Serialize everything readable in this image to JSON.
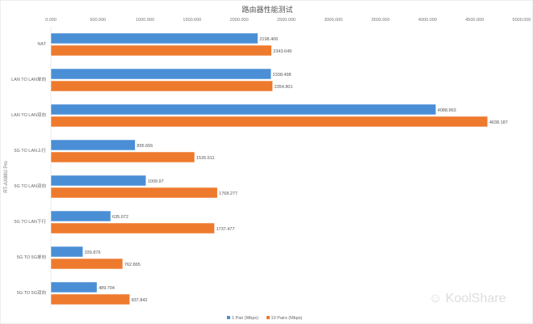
{
  "chart_data": {
    "type": "bar",
    "orientation": "horizontal",
    "title": "路由器性能测试",
    "ylabel": "RT-AX88U Pro",
    "xlabel": "",
    "xlim": [
      0,
      5000
    ],
    "xticks": [
      "0.000",
      "500.000",
      "1000.000",
      "1500.000",
      "2000.000",
      "2500.000",
      "3000.000",
      "3500.000",
      "4000.000",
      "4500.000",
      "5000.000"
    ],
    "categories": [
      "NAT",
      "LAN TO LAN单向",
      "LAN TO LAN双向",
      "5G TO LAN上行",
      "5G TO LAN双向",
      "5G TO LAN下行",
      "5G TO 5G单向",
      "5G TO 5G双向"
    ],
    "series": [
      {
        "name": "1 Pair (Mbps)",
        "color": "#4a8fd6",
        "values": [
          2198.406,
          2338.498,
          4088.963,
          895.656,
          1009.97,
          635.072,
          339.876,
          489.704
        ],
        "labels": [
          "2198.406",
          "2338.498",
          "4088.963",
          "895.656",
          "1009.97",
          "635.072",
          "339.876",
          "489.704"
        ]
      },
      {
        "name": "10 Pairs (Mbps)",
        "color": "#ee7a2e",
        "values": [
          2343.649,
          2354.801,
          4638.187,
          1526.511,
          1768.277,
          1737.477,
          762.865,
          837.842
        ],
        "labels": [
          "2343.649",
          "2354.801",
          "4638.187",
          "1526.511",
          "1768.277",
          "1737.477",
          "762.865",
          "837.842"
        ]
      }
    ],
    "legend": "bottom",
    "grid": false
  },
  "watermark": "KoolShare"
}
